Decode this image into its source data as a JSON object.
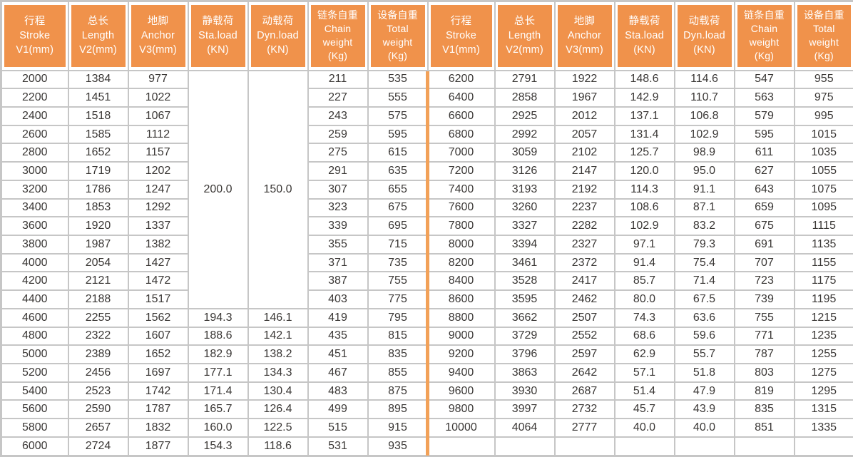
{
  "colors": {
    "header_bg": "#F0924B",
    "header_text": "#FFFFFF",
    "grid_line": "#C6C6C6",
    "outer_border": "#C6C6C6",
    "data_text": "#3A3735",
    "half_divider": "#F2A158",
    "row_bg": "#FFFFFF"
  },
  "table": {
    "columns": [
      {
        "key": "stroke",
        "lines": [
          "行程",
          "Stroke",
          "V1(mm)"
        ]
      },
      {
        "key": "length",
        "lines": [
          "总长",
          "Length",
          "V2(mm)"
        ]
      },
      {
        "key": "anchor",
        "lines": [
          "地脚",
          "Anchor",
          "V3(mm)"
        ]
      },
      {
        "key": "static-load",
        "lines": [
          "静载荷",
          "Sta.load",
          "(KN)"
        ]
      },
      {
        "key": "dynamic-load",
        "lines": [
          "动载荷",
          "Dyn.load",
          "(KN)"
        ]
      },
      {
        "key": "chain-weight",
        "lines": [
          "链条自重",
          "Chain",
          "weight",
          "(Kg)"
        ]
      },
      {
        "key": "total-weight",
        "lines": [
          "设备自重",
          "Total",
          "weight",
          "(Kg)"
        ]
      }
    ],
    "merged_load_cell": {
      "sta_load_value": "200.0",
      "dyn_load_value": "150.0",
      "row_span": 13
    },
    "left_rows": [
      [
        "2000",
        "1384",
        "977",
        "",
        "",
        "211",
        "535"
      ],
      [
        "2200",
        "1451",
        "1022",
        "",
        "",
        "227",
        "555"
      ],
      [
        "2400",
        "1518",
        "1067",
        "",
        "",
        "243",
        "575"
      ],
      [
        "2600",
        "1585",
        "1112",
        "",
        "",
        "259",
        "595"
      ],
      [
        "2800",
        "1652",
        "1157",
        "",
        "",
        "275",
        "615"
      ],
      [
        "3000",
        "1719",
        "1202",
        "",
        "",
        "291",
        "635"
      ],
      [
        "3200",
        "1786",
        "1247",
        "",
        "",
        "307",
        "655"
      ],
      [
        "3400",
        "1853",
        "1292",
        "",
        "",
        "323",
        "675"
      ],
      [
        "3600",
        "1920",
        "1337",
        "",
        "",
        "339",
        "695"
      ],
      [
        "3800",
        "1987",
        "1382",
        "",
        "",
        "355",
        "715"
      ],
      [
        "4000",
        "2054",
        "1427",
        "",
        "",
        "371",
        "735"
      ],
      [
        "4200",
        "2121",
        "1472",
        "",
        "",
        "387",
        "755"
      ],
      [
        "4400",
        "2188",
        "1517",
        "",
        "",
        "403",
        "775"
      ],
      [
        "4600",
        "2255",
        "1562",
        "194.3",
        "146.1",
        "419",
        "795"
      ],
      [
        "4800",
        "2322",
        "1607",
        "188.6",
        "142.1",
        "435",
        "815"
      ],
      [
        "5000",
        "2389",
        "1652",
        "182.9",
        "138.2",
        "451",
        "835"
      ],
      [
        "5200",
        "2456",
        "1697",
        "177.1",
        "134.3",
        "467",
        "855"
      ],
      [
        "5400",
        "2523",
        "1742",
        "171.4",
        "130.4",
        "483",
        "875"
      ],
      [
        "5600",
        "2590",
        "1787",
        "165.7",
        "126.4",
        "499",
        "895"
      ],
      [
        "5800",
        "2657",
        "1832",
        "160.0",
        "122.5",
        "515",
        "915"
      ],
      [
        "6000",
        "2724",
        "1877",
        "154.3",
        "118.6",
        "531",
        "935"
      ]
    ],
    "right_rows": [
      [
        "6200",
        "2791",
        "1922",
        "148.6",
        "114.6",
        "547",
        "955"
      ],
      [
        "6400",
        "2858",
        "1967",
        "142.9",
        "110.7",
        "563",
        "975"
      ],
      [
        "6600",
        "2925",
        "2012",
        "137.1",
        "106.8",
        "579",
        "995"
      ],
      [
        "6800",
        "2992",
        "2057",
        "131.4",
        "102.9",
        "595",
        "1015"
      ],
      [
        "7000",
        "3059",
        "2102",
        "125.7",
        "98.9",
        "611",
        "1035"
      ],
      [
        "7200",
        "3126",
        "2147",
        "120.0",
        "95.0",
        "627",
        "1055"
      ],
      [
        "7400",
        "3193",
        "2192",
        "114.3",
        "91.1",
        "643",
        "1075"
      ],
      [
        "7600",
        "3260",
        "2237",
        "108.6",
        "87.1",
        "659",
        "1095"
      ],
      [
        "7800",
        "3327",
        "2282",
        "102.9",
        "83.2",
        "675",
        "1115"
      ],
      [
        "8000",
        "3394",
        "2327",
        "97.1",
        "79.3",
        "691",
        "1135"
      ],
      [
        "8200",
        "3461",
        "2372",
        "91.4",
        "75.4",
        "707",
        "1155"
      ],
      [
        "8400",
        "3528",
        "2417",
        "85.7",
        "71.4",
        "723",
        "1175"
      ],
      [
        "8600",
        "3595",
        "2462",
        "80.0",
        "67.5",
        "739",
        "1195"
      ],
      [
        "8800",
        "3662",
        "2507",
        "74.3",
        "63.6",
        "755",
        "1215"
      ],
      [
        "9000",
        "3729",
        "2552",
        "68.6",
        "59.6",
        "771",
        "1235"
      ],
      [
        "9200",
        "3796",
        "2597",
        "62.9",
        "55.7",
        "787",
        "1255"
      ],
      [
        "9400",
        "3863",
        "2642",
        "57.1",
        "51.8",
        "803",
        "1275"
      ],
      [
        "9600",
        "3930",
        "2687",
        "51.4",
        "47.9",
        "819",
        "1295"
      ],
      [
        "9800",
        "3997",
        "2732",
        "45.7",
        "43.9",
        "835",
        "1315"
      ],
      [
        "10000",
        "4064",
        "2777",
        "40.0",
        "40.0",
        "851",
        "1335"
      ],
      [
        "",
        "",
        "",
        "",
        "",
        "",
        ""
      ]
    ]
  }
}
